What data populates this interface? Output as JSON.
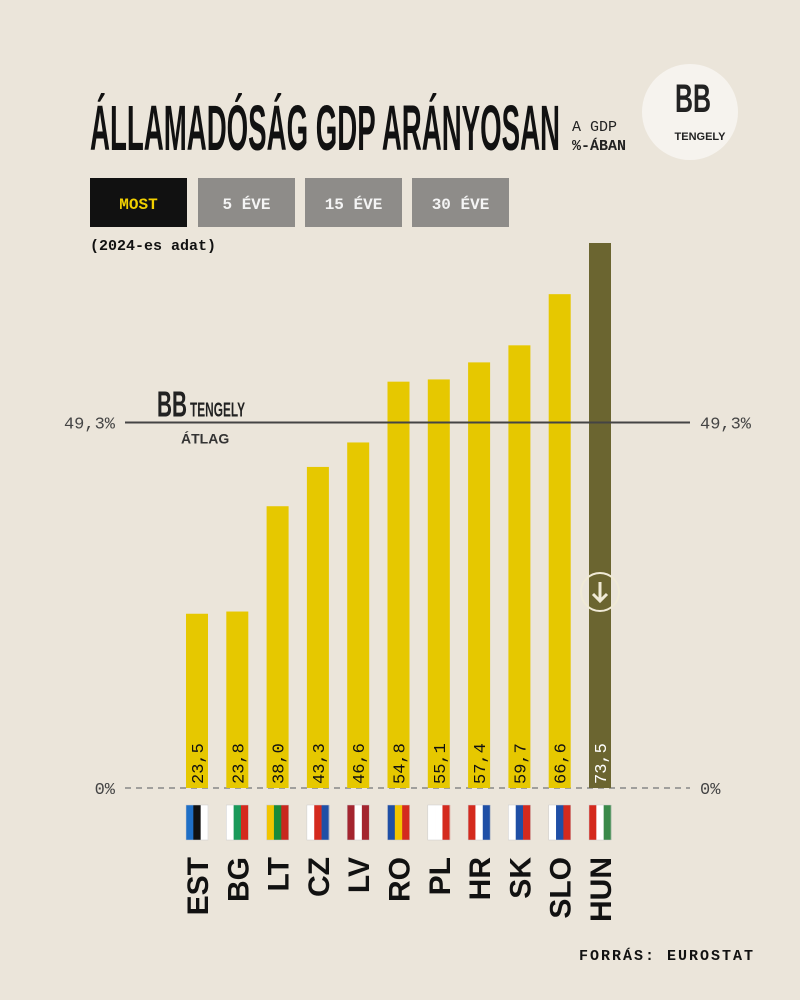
{
  "header": {
    "title": "ÁLLAMADÓSÁG GDP ARÁNYOSAN",
    "unit_line1": "A GDP",
    "unit_line2": "%-ÁBAN",
    "logo_mark": "BB",
    "logo_word": "TENGELY"
  },
  "tabs": [
    "MOST",
    "5 ÉVE",
    "15 ÉVE",
    "30 ÉVE"
  ],
  "note": "(2024-es adat)",
  "source": "FORRÁS: EUROSTAT",
  "chart_data": {
    "type": "bar",
    "categories": [
      "EST",
      "BG",
      "LT",
      "CZ",
      "LV",
      "RO",
      "PL",
      "HR",
      "SK",
      "SLO",
      "HUN"
    ],
    "values": [
      23.5,
      23.8,
      38.0,
      43.3,
      46.6,
      54.8,
      55.1,
      57.4,
      59.7,
      66.6,
      73.5
    ],
    "value_labels": [
      "23,5",
      "23,8",
      "38,0",
      "43,3",
      "46,6",
      "54,8",
      "55,1",
      "57,4",
      "59,7",
      "66,6",
      "73,5"
    ],
    "color": "#e6c800",
    "highlight_color": "#6b6530",
    "highlight_category": "HUN",
    "ylim": [
      0,
      73.5
    ],
    "yticks": [
      {
        "value": 0,
        "label": "0%"
      }
    ],
    "reference_line": {
      "value": 49.3,
      "label": "49,3%",
      "caption": "ÁTLAG"
    }
  }
}
